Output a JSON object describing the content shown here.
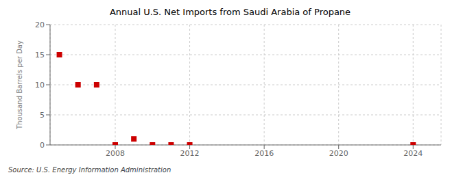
{
  "chart_data": {
    "type": "scatter",
    "title": "Annual U.S. Net Imports from Saudi Arabia of Propane",
    "ylabel": "Thousand Barrels per Day",
    "source": "Source: U.S. Energy Information Administration",
    "x": [
      2005,
      2006,
      2007,
      2008,
      2009,
      2010,
      2011,
      2012,
      2024
    ],
    "values": [
      15,
      10,
      10,
      0,
      1,
      0,
      0,
      0,
      0
    ],
    "color": "#cc0000",
    "marker": "square",
    "xlim": [
      2004.5,
      2025.5
    ],
    "ylim": [
      0,
      20
    ],
    "xticks": [
      2008,
      2012,
      2016,
      2020,
      2024
    ],
    "yticks": [
      0,
      5,
      10,
      15,
      20
    ],
    "grid": true
  }
}
